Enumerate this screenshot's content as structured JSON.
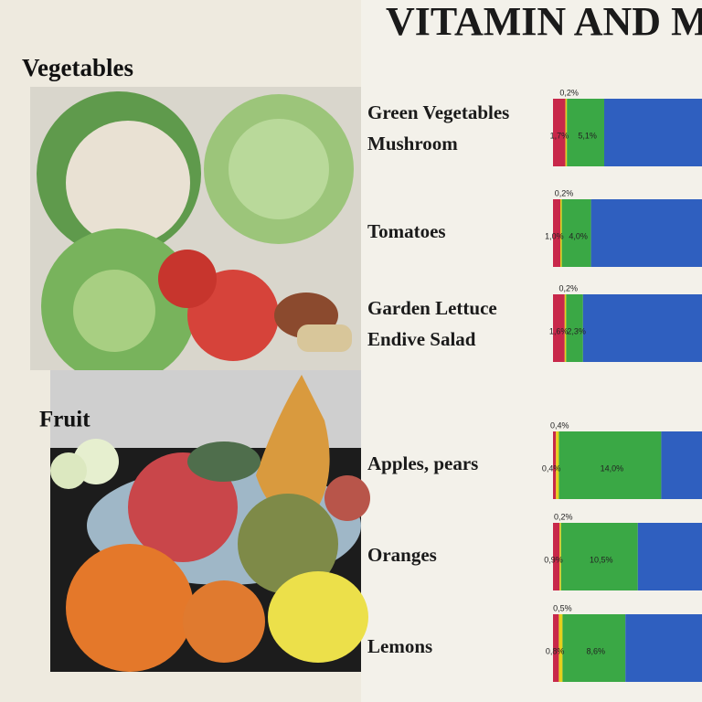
{
  "title": "VITAMIN AND M",
  "sections": [
    "Vegetables",
    "Fruit"
  ],
  "colors": [
    "#c8284a",
    "#e6cf1c",
    "#3aa845"
  ],
  "rows": [
    {
      "names": [
        "Green Vegetables",
        "Mushroom"
      ],
      "values": [
        1.7,
        0.2,
        5.1
      ],
      "value_labels": [
        "1,7%",
        "0,2%",
        "5,1%"
      ]
    },
    {
      "names": [
        "Tomatoes"
      ],
      "values": [
        1.0,
        0.2,
        4.0
      ],
      "value_labels": [
        "1,0%",
        "0,2%",
        "4,0%"
      ]
    },
    {
      "names": [
        "Garden Lettuce",
        "Endive Salad"
      ],
      "values": [
        1.6,
        0.2,
        2.3
      ],
      "value_labels": [
        "1,6%",
        "0,2%",
        "2,3%"
      ]
    },
    {
      "names": [
        "Apples, pears"
      ],
      "values": [
        0.4,
        0.4,
        14.0
      ],
      "value_labels": [
        "0,4%",
        "0,4%",
        "14,0%"
      ]
    },
    {
      "names": [
        "Oranges"
      ],
      "values": [
        0.9,
        0.2,
        10.5
      ],
      "value_labels": [
        "0,9%",
        "0,2%",
        "10,5%"
      ]
    },
    {
      "names": [
        "Lemons"
      ],
      "values": [
        0.8,
        0.5,
        8.6
      ],
      "value_labels": [
        "0,8%",
        "0,5%",
        "8,6%"
      ]
    }
  ]
}
